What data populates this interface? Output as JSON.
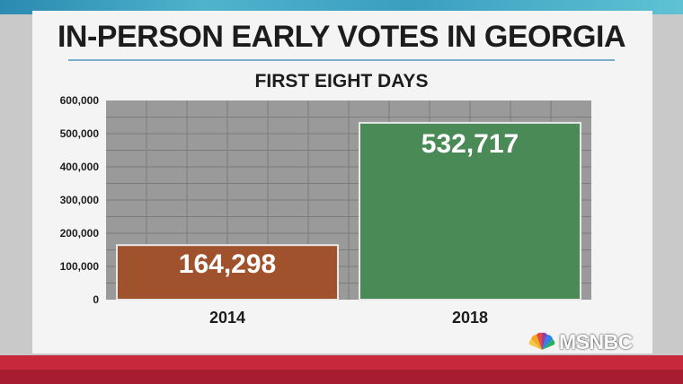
{
  "title": "IN-PERSON EARLY VOTES IN GEORGIA",
  "subtitle": "FIRST EIGHT DAYS",
  "network": "MSNBC",
  "colors": {
    "bar_2014": "#a0522d",
    "bar_2018": "#4a8a57",
    "plot_bg": "#9a9a9a",
    "grid": "#7c7c7c"
  },
  "chart_data": {
    "type": "bar",
    "categories": [
      "2014",
      "2018"
    ],
    "values": [
      164298,
      532717
    ],
    "value_labels": [
      "164,298",
      "532,717"
    ],
    "title": "IN-PERSON EARLY VOTES IN GEORGIA",
    "subtitle": "FIRST EIGHT DAYS",
    "xlabel": "",
    "ylabel": "",
    "ylim": [
      0,
      600000
    ],
    "yticks": [
      0,
      100000,
      200000,
      300000,
      400000,
      500000,
      600000
    ],
    "ytick_labels": [
      "0",
      "100,000",
      "200,000",
      "300,000",
      "400,000",
      "500,000",
      "600,000"
    ],
    "grid": true,
    "legend": "none"
  }
}
